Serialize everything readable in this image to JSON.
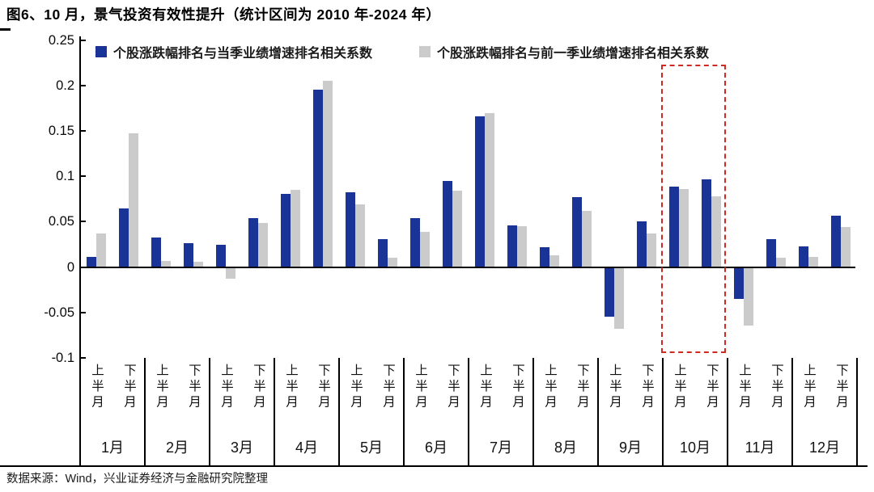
{
  "title": "图6、10 月，景气投资有效性提升（统计区间为 2010 年-2024 年）",
  "source_note": "数据来源：Wind，兴业证券经济与金融研究院整理",
  "colors": {
    "series_current": "#1a3396",
    "series_previous": "#cbcbcb",
    "axis": "#000000",
    "highlight_red": "#cf2a21"
  },
  "chart_data": {
    "type": "bar",
    "grid": false,
    "legend_position": "top",
    "ylim": [
      -0.1,
      0.25
    ],
    "y_ticks": [
      0.25,
      0.2,
      0.15,
      0.1,
      0.05,
      0,
      -0.05,
      -0.1
    ],
    "y_tick_labels": [
      "0.25",
      "0.2",
      "0.15",
      "0.1",
      "0.05",
      "0",
      "-0.05",
      "-0.1"
    ],
    "months": [
      "1月",
      "2月",
      "3月",
      "4月",
      "5月",
      "6月",
      "7月",
      "8月",
      "9月",
      "10月",
      "11月",
      "12月"
    ],
    "half_month_labels": [
      "上半月",
      "下半月"
    ],
    "categories": [
      "1月上半月",
      "1月下半月",
      "2月上半月",
      "2月下半月",
      "3月上半月",
      "3月下半月",
      "4月上半月",
      "4月下半月",
      "5月上半月",
      "5月下半月",
      "6月上半月",
      "6月下半月",
      "7月上半月",
      "7月下半月",
      "8月上半月",
      "8月下半月",
      "9月上半月",
      "9月下半月",
      "10月上半月",
      "10月下半月",
      "11月上半月",
      "11月下半月",
      "12月上半月",
      "12月下半月"
    ],
    "series": [
      {
        "name": "个股涨跌幅排名与当季业绩增速排名相关系数",
        "color": "#1a3396",
        "values": [
          0.011,
          0.065,
          0.033,
          0.026,
          0.025,
          0.054,
          0.081,
          0.195,
          0.082,
          0.031,
          0.054,
          0.095,
          0.166,
          0.046,
          0.022,
          0.077,
          -0.055,
          0.05,
          0.089,
          0.097,
          -0.035,
          0.031,
          0.023,
          0.057
        ]
      },
      {
        "name": "个股涨跌幅排名与前一季业绩增速排名相关系数",
        "color": "#cbcbcb",
        "values": [
          0.037,
          0.147,
          0.007,
          0.006,
          -0.013,
          0.049,
          0.085,
          0.205,
          0.069,
          0.01,
          0.039,
          0.084,
          0.17,
          0.045,
          0.013,
          0.062,
          -0.068,
          0.037,
          0.086,
          0.078,
          -0.064,
          0.01,
          0.011,
          0.044
        ]
      }
    ],
    "highlight": {
      "month": "10月",
      "color": "#cf2a21",
      "style": "dashed-rect"
    }
  }
}
